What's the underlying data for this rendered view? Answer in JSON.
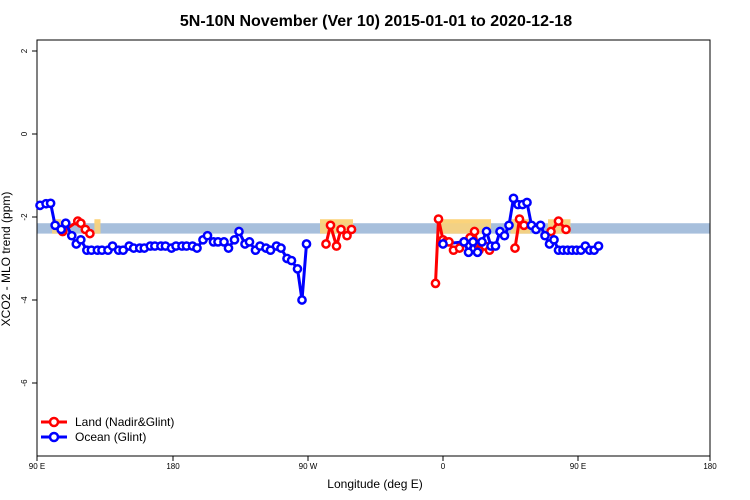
{
  "chart_data": {
    "type": "line",
    "title": "5N-10N November (Ver 10)   2015-01-01 to 2020-12-18",
    "xlabel": "Longitude (deg E)",
    "ylabel": "XCO2 - MLO trend (ppm)",
    "xlim": [
      90,
      450
    ],
    "ylim": [
      -7.8,
      2.2
    ],
    "x_ticks": [
      {
        "value": 90,
        "label": "90 E"
      },
      {
        "value": 180,
        "label": "180"
      },
      {
        "value": 270,
        "label": "90 W"
      },
      {
        "value": 360,
        "label": "0"
      },
      {
        "value": 450,
        "label": "90 E"
      },
      {
        "value": 540,
        "label": "180"
      }
    ],
    "y_ticks": [
      {
        "value": 2,
        "label": "2"
      },
      {
        "value": 0,
        "label": "0"
      },
      {
        "value": -2,
        "label": "-2"
      },
      {
        "value": -4,
        "label": "-4"
      },
      {
        "value": -6,
        "label": "-6"
      }
    ],
    "band": {
      "ymin": -2.4,
      "ymax": -2.15,
      "color": "#a7bfdc"
    },
    "land_fill_color": "#fbd37b",
    "legend": {
      "position": "bottom-left"
    },
    "series": [
      {
        "name": "Land (Nadir&Glint)",
        "color": "#ff0000",
        "segments": [
          [
            [
              107,
              -2.35
            ],
            [
              117,
              -2.1
            ],
            [
              119,
              -2.15
            ],
            [
              122,
              -2.3
            ],
            [
              125,
              -2.4
            ]
          ],
          [
            [
              282,
              -2.65
            ],
            [
              285,
              -2.2
            ],
            [
              289,
              -2.7
            ],
            [
              292,
              -2.3
            ],
            [
              296,
              -2.45
            ],
            [
              299,
              -2.3
            ]
          ],
          [
            [
              355,
              -3.6
            ],
            [
              357,
              -2.05
            ],
            [
              360,
              -2.55
            ],
            [
              362,
              -2.6
            ],
            [
              364,
              -2.6
            ],
            [
              367,
              -2.8
            ],
            [
              371,
              -2.75
            ],
            [
              374,
              -2.6
            ],
            [
              378,
              -2.5
            ],
            [
              381,
              -2.35
            ],
            [
              384,
              -2.8
            ],
            [
              388,
              -2.7
            ],
            [
              391,
              -2.8
            ]
          ],
          [
            [
              408,
              -2.75
            ],
            [
              411,
              -2.05
            ],
            [
              414,
              -2.2
            ]
          ],
          [
            [
              432,
              -2.35
            ],
            [
              437,
              -2.1
            ],
            [
              442,
              -2.3
            ]
          ]
        ]
      },
      {
        "name": "Ocean (Glint)",
        "color": "#0000ff",
        "points": [
          [
            92,
            -1.72
          ],
          [
            96,
            -1.68
          ],
          [
            99,
            -1.67
          ],
          [
            102,
            -2.2
          ],
          [
            106,
            -2.3
          ],
          [
            109,
            -2.15
          ],
          [
            113,
            -2.45
          ],
          [
            116,
            -2.65
          ],
          [
            119,
            -2.55
          ],
          [
            123,
            -2.8
          ],
          [
            126,
            -2.8
          ],
          [
            130,
            -2.8
          ],
          [
            133,
            -2.8
          ],
          [
            137,
            -2.8
          ],
          [
            140,
            -2.7
          ],
          [
            144,
            -2.8
          ],
          [
            147,
            -2.8
          ],
          [
            151,
            -2.7
          ],
          [
            154,
            -2.75
          ],
          [
            158,
            -2.75
          ],
          [
            161,
            -2.75
          ],
          [
            165,
            -2.7
          ],
          [
            168,
            -2.7
          ],
          [
            172,
            -2.7
          ],
          [
            175,
            -2.7
          ],
          [
            179,
            -2.75
          ],
          [
            182,
            -2.7
          ],
          [
            186,
            -2.7
          ],
          [
            189,
            -2.7
          ],
          [
            193,
            -2.7
          ],
          [
            196,
            -2.75
          ],
          [
            200,
            -2.55
          ],
          [
            203,
            -2.45
          ],
          [
            207,
            -2.6
          ],
          [
            210,
            -2.6
          ],
          [
            214,
            -2.6
          ],
          [
            217,
            -2.75
          ],
          [
            221,
            -2.55
          ],
          [
            224,
            -2.35
          ],
          [
            228,
            -2.65
          ],
          [
            231,
            -2.6
          ],
          [
            235,
            -2.8
          ],
          [
            238,
            -2.7
          ],
          [
            242,
            -2.75
          ],
          [
            245,
            -2.8
          ],
          [
            249,
            -2.7
          ],
          [
            252,
            -2.75
          ],
          [
            256,
            -3.0
          ],
          [
            259,
            -3.05
          ],
          [
            263,
            -3.25
          ],
          [
            266,
            -4.0
          ],
          [
            269,
            -2.65
          ]
        ]
      }
    ]
  }
}
